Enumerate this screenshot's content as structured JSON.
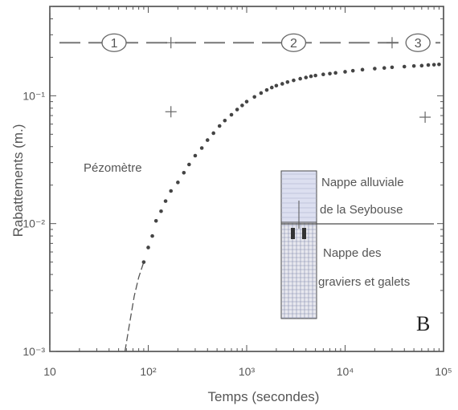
{
  "chart_data": {
    "type": "scatter",
    "title": "",
    "xlabel": "Temps  (secondes)",
    "ylabel": "Rabattements  (m.)",
    "xscale": "log",
    "yscale": "log",
    "xlim": [
      10,
      100000
    ],
    "ylim": [
      0.001,
      0.5
    ],
    "grid": false,
    "x_tick_labels": [
      "10",
      "10²",
      "10³",
      "10⁴",
      "10⁵"
    ],
    "x_tick_values": [
      10,
      100,
      1000,
      10000,
      100000
    ],
    "y_tick_labels": [
      "10⁻³",
      "10⁻²",
      "10⁻¹"
    ],
    "y_tick_values": [
      0.001,
      0.01,
      0.1
    ],
    "series": [
      {
        "kind": "points",
        "x": [
          90,
          100,
          110,
          120,
          135,
          150,
          170,
          200,
          230,
          260,
          300,
          350,
          400,
          460,
          530,
          600,
          700,
          800,
          900,
          1000,
          1200,
          1400,
          1600,
          1800,
          2000,
          2300,
          2600,
          3000,
          3500,
          4000,
          4500,
          5000,
          6000,
          7000,
          8000,
          10000,
          12000,
          15000,
          20000,
          25000,
          30000,
          40000,
          50000,
          60000,
          70000,
          80000,
          90000
        ],
        "y": [
          0.005,
          0.0065,
          0.008,
          0.0105,
          0.0125,
          0.015,
          0.018,
          0.021,
          0.025,
          0.029,
          0.034,
          0.039,
          0.045,
          0.051,
          0.058,
          0.064,
          0.071,
          0.078,
          0.084,
          0.09,
          0.098,
          0.105,
          0.111,
          0.116,
          0.12,
          0.124,
          0.128,
          0.132,
          0.136,
          0.139,
          0.142,
          0.144,
          0.147,
          0.149,
          0.151,
          0.154,
          0.157,
          0.16,
          0.163,
          0.165,
          0.167,
          0.169,
          0.171,
          0.172,
          0.174,
          0.175,
          0.176
        ]
      },
      {
        "kind": "dash-curve",
        "x": [
          58,
          65,
          72,
          80,
          90
        ],
        "y": [
          0.001,
          0.0017,
          0.0027,
          0.0038,
          0.005
        ]
      },
      {
        "kind": "horizontal-dashed-line",
        "y": 0.26
      }
    ],
    "crosses": [
      {
        "x": 170,
        "y": 0.26
      },
      {
        "x": 30000,
        "y": 0.26
      },
      {
        "x": 170,
        "y": 0.075
      },
      {
        "x": 65000,
        "y": 0.068
      }
    ],
    "zones": [
      {
        "label": "1",
        "x": 45
      },
      {
        "label": "2",
        "x": 3000
      },
      {
        "label": "3",
        "x": 55000
      }
    ],
    "annotations": {
      "piezometre": "Pézomètre",
      "upper_layer_line1": "Nappe alluviale",
      "upper_layer_line2": "de la Seybouse",
      "lower_layer_line1": "Nappe des",
      "lower_layer_line2": "graviers et galets",
      "panel_letter": "B"
    }
  }
}
